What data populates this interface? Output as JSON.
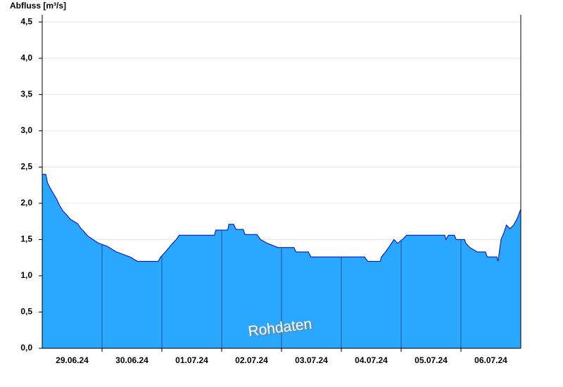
{
  "chart_data": {
    "type": "area",
    "title": "Abfluss [m³/s]",
    "annotation": "Rohdaten",
    "categories": [
      "29.06.24",
      "30.06.24",
      "01.07.24",
      "02.07.24",
      "03.07.24",
      "04.07.24",
      "05.07.24",
      "06.07.24"
    ],
    "xlim": [
      0,
      8
    ],
    "xticks": [
      1,
      2,
      3,
      4,
      5,
      6,
      7
    ],
    "ylim": [
      0,
      4.6
    ],
    "yticks": [
      {
        "value": 0,
        "label": "0,0"
      },
      {
        "value": 0.5,
        "label": "0,5"
      },
      {
        "value": 1,
        "label": "1,0"
      },
      {
        "value": 1.5,
        "label": "1,5"
      },
      {
        "value": 2,
        "label": "2,0"
      },
      {
        "value": 2.5,
        "label": "2,5"
      },
      {
        "value": 3,
        "label": "3,0"
      },
      {
        "value": 3.5,
        "label": "3,5"
      },
      {
        "value": 4,
        "label": "4,0"
      },
      {
        "value": 4.5,
        "label": "4,5"
      }
    ],
    "grid": true,
    "day_line_color": "#1b4f80",
    "x": [
      0,
      0.06,
      0.09,
      0.14,
      0.19,
      0.24,
      0.29,
      0.35,
      0.41,
      0.47,
      0.59,
      0.65,
      0.71,
      0.76,
      0.85,
      0.94,
      1.08,
      1.24,
      1.47,
      1.59,
      1.94,
      1.98,
      2.06,
      2.12,
      2.18,
      2.24,
      2.29,
      2.88,
      2.9,
      3.1,
      3.12,
      3.2,
      3.24,
      3.36,
      3.39,
      3.59,
      3.65,
      3.76,
      3.94,
      4.21,
      4.24,
      4.45,
      4.49,
      5.39,
      5.44,
      5.65,
      5.67,
      5.74,
      5.79,
      5.84,
      5.88,
      5.94,
      6.02,
      6.09,
      6.73,
      6.75,
      6.79,
      6.89,
      6.92,
      7.06,
      7.08,
      7.15,
      7.27,
      7.41,
      7.44,
      7.6,
      7.62,
      7.67,
      7.72,
      7.76,
      7.82,
      7.88,
      7.94,
      8
    ],
    "series": [
      {
        "color": "#2aa8ff",
        "line_color": "#0000b0",
        "values": [
          2.4,
          2.4,
          2.28,
          2.2,
          2.13,
          2.06,
          1.97,
          1.89,
          1.84,
          1.78,
          1.72,
          1.65,
          1.6,
          1.55,
          1.5,
          1.45,
          1.41,
          1.33,
          1.26,
          1.2,
          1.2,
          1.26,
          1.33,
          1.39,
          1.45,
          1.5,
          1.56,
          1.56,
          1.63,
          1.63,
          1.71,
          1.71,
          1.64,
          1.64,
          1.57,
          1.57,
          1.5,
          1.45,
          1.39,
          1.39,
          1.33,
          1.33,
          1.26,
          1.26,
          1.2,
          1.2,
          1.26,
          1.33,
          1.39,
          1.45,
          1.5,
          1.45,
          1.5,
          1.56,
          1.56,
          1.5,
          1.56,
          1.56,
          1.5,
          1.5,
          1.45,
          1.39,
          1.33,
          1.33,
          1.26,
          1.26,
          1.2,
          1.5,
          1.6,
          1.7,
          1.65,
          1.7,
          1.79,
          1.92
        ]
      }
    ]
  }
}
